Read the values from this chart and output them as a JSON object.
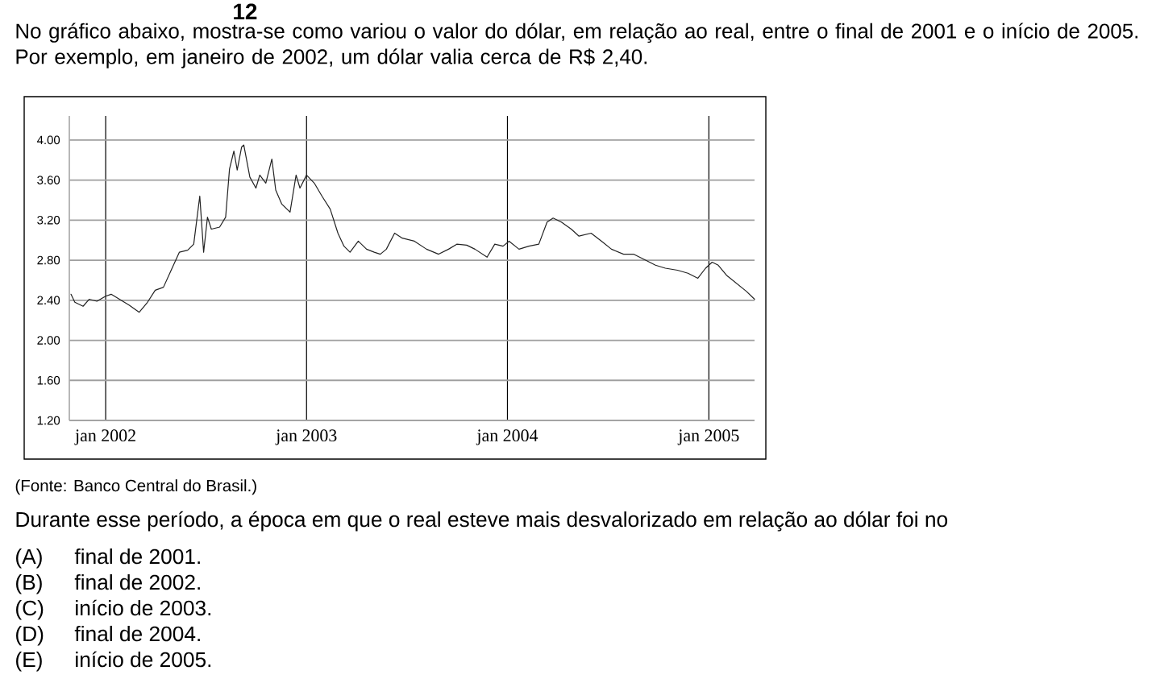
{
  "chart_data": {
    "type": "line",
    "title": "No gráfico abaixo, mostra-se como variou o valor do dólar, em relação ao real, entre o final de 2001 e o início de 2005. Por exemplo, em janeiro de 2002, um dólar valia cerca de R$ 2,40.",
    "annotations": [
      "12",
      "(Fonte: Banco Central do Brasil.)",
      "Durante esse período, a época em que o real esteve mais desvalorizado em relação ao dólar foi no",
      "(A)",
      "final de 2001.",
      "(B)",
      "final de 2002.",
      "(C)",
      "início de 2003.",
      "(D)",
      "final de 2004.",
      "(E)",
      "início de 2005."
    ],
    "x": [
      "2001-10-30",
      "2001-11-06",
      "2001-11-21",
      "2001-12-02",
      "2001-12-16",
      "2002-01-01",
      "2002-01-11",
      "2002-01-26",
      "2002-02-13",
      "2002-03-03",
      "2002-03-18",
      "2002-04-01",
      "2002-04-16",
      "2002-04-30",
      "2002-05-15",
      "2002-05-30",
      "2002-06-10",
      "2002-06-21",
      "2002-06-28",
      "2002-07-05",
      "2002-07-12",
      "2002-07-27",
      "2002-08-07",
      "2002-08-14",
      "2002-08-22",
      "2002-08-28",
      "2002-09-05",
      "2002-09-09",
      "2002-09-20",
      "2002-10-01",
      "2002-10-08",
      "2002-10-19",
      "2002-10-30",
      "2002-11-06",
      "2002-11-17",
      "2002-12-02",
      "2002-12-13",
      "2002-12-20",
      "2003-01-01",
      "2003-01-15",
      "2003-01-29",
      "2003-02-13",
      "2003-02-27",
      "2003-03-10",
      "2003-03-21",
      "2003-04-05",
      "2003-04-20",
      "2003-05-04",
      "2003-05-15",
      "2003-05-26",
      "2003-06-10",
      "2003-06-24",
      "2003-07-16",
      "2003-08-07",
      "2003-08-29",
      "2003-09-16",
      "2003-10-01",
      "2003-10-19",
      "2003-11-03",
      "2003-11-25",
      "2003-12-09",
      "2003-12-24",
      "2004-01-04",
      "2004-01-22",
      "2004-02-09",
      "2004-02-27",
      "2004-03-13",
      "2004-03-24",
      "2004-04-08",
      "2004-04-26",
      "2004-05-10",
      "2004-06-01",
      "2004-06-20",
      "2004-07-08",
      "2004-07-30",
      "2004-08-17",
      "2004-09-08",
      "2004-09-26",
      "2004-10-14",
      "2004-11-05",
      "2004-11-24",
      "2004-12-12",
      "2004-12-26",
      "2005-01-07",
      "2005-01-18",
      "2005-02-02",
      "2005-02-20",
      "2005-03-10",
      "2005-03-25"
    ],
    "values": [
      2.46,
      2.38,
      2.34,
      2.41,
      2.39,
      2.44,
      2.46,
      2.41,
      2.35,
      2.28,
      2.38,
      2.5,
      2.53,
      2.7,
      2.88,
      2.9,
      2.96,
      3.44,
      2.88,
      3.23,
      3.11,
      3.13,
      3.23,
      3.71,
      3.89,
      3.7,
      3.93,
      3.95,
      3.63,
      3.52,
      3.65,
      3.57,
      3.81,
      3.5,
      3.36,
      3.28,
      3.65,
      3.52,
      3.65,
      3.57,
      3.44,
      3.31,
      3.07,
      2.94,
      2.88,
      2.99,
      2.91,
      2.88,
      2.86,
      2.91,
      3.07,
      3.02,
      2.99,
      2.91,
      2.86,
      2.91,
      2.96,
      2.95,
      2.91,
      2.83,
      2.96,
      2.94,
      2.99,
      2.91,
      2.94,
      2.96,
      3.18,
      3.22,
      3.18,
      3.11,
      3.04,
      3.07,
      2.99,
      2.91,
      2.86,
      2.86,
      2.8,
      2.75,
      2.72,
      2.7,
      2.67,
      2.62,
      2.72,
      2.78,
      2.75,
      2.65,
      2.57,
      2.49,
      2.41
    ],
    "color": "#222222",
    "xlim": [
      "2001-10-27",
      "2005-03-25"
    ],
    "ylim": [
      1.2,
      4.24
    ],
    "xticks": [
      {
        "value": "2002-01-01",
        "label": "jan 2002"
      },
      {
        "value": "2003-01-01",
        "label": "jan 2003"
      },
      {
        "value": "2004-01-01",
        "label": "jan 2004"
      },
      {
        "value": "2005-01-01",
        "label": "jan 2005"
      }
    ],
    "yticks": [
      {
        "value": 1.2,
        "label": "1.20"
      },
      {
        "value": 1.6,
        "label": "1.60"
      },
      {
        "value": 2.0,
        "label": "2.00"
      },
      {
        "value": 2.4,
        "label": "2.40"
      },
      {
        "value": 2.8,
        "label": "2.80"
      },
      {
        "value": 3.2,
        "label": "3.20"
      },
      {
        "value": 3.6,
        "label": "3.60"
      },
      {
        "value": 4.0,
        "label": "4.00"
      }
    ],
    "grid": true
  }
}
